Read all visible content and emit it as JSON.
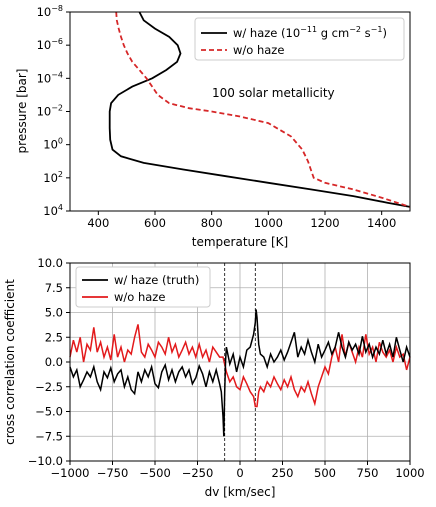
{
  "chart_data": [
    {
      "type": "line",
      "xlabel": "temperature [K]",
      "ylabel": "pressure [bar]",
      "xlim": [
        300,
        1500
      ],
      "ylim_log10": [
        4,
        -8
      ],
      "y_scale": "log",
      "y_inverted": true,
      "grid": false,
      "legend_position": "top-right",
      "x_ticks": [
        "400",
        "600",
        "800",
        "1000",
        "1200",
        "1400"
      ],
      "x_tick_values": [
        400,
        600,
        800,
        1000,
        1200,
        1400
      ],
      "y_ticks": [
        {
          "base": "10",
          "exp": "−8",
          "value": "1e-8"
        },
        {
          "base": "10",
          "exp": "−6",
          "value": "1e-6"
        },
        {
          "base": "10",
          "exp": "−4",
          "value": "1e-4"
        },
        {
          "base": "10",
          "exp": "−2",
          "value": "1e-2"
        },
        {
          "base": "10",
          "exp": "0",
          "value": "1e0"
        },
        {
          "base": "10",
          "exp": "2",
          "value": "1e2"
        },
        {
          "base": "10",
          "exp": "4",
          "value": "1e4"
        }
      ],
      "annotation": "100 solar metallicity",
      "legend": {
        "haze_prefix": "w/ haze (10",
        "haze_exp1": "−11",
        "haze_mid": " g cm",
        "haze_exp2": "−2",
        "haze_mid2": " s",
        "haze_exp3": "−1",
        "haze_suffix": ")",
        "nohaze": "w/o haze"
      },
      "series": [
        {
          "name": "w/ haze (10^-11 g cm^-2 s^-1)",
          "color": "#000000",
          "style": "solid",
          "temperature_K": [
            545,
            560,
            600,
            650,
            680,
            690,
            678,
            640,
            590,
            520,
            470,
            445,
            440,
            440,
            442,
            450,
            480,
            560,
            700,
            850,
            1000,
            1150,
            1300,
            1420,
            1500
          ],
          "log10_pressure_bar": [
            -8,
            -7.5,
            -7,
            -6.5,
            -6,
            -5.5,
            -5,
            -4.5,
            -4,
            -3.5,
            -3,
            -2.5,
            -2,
            -1,
            -0.3,
            0.3,
            0.7,
            1.1,
            1.5,
            1.9,
            2.3,
            2.7,
            3.1,
            3.5,
            3.75
          ]
        },
        {
          "name": "w/o haze",
          "color": "#d62728",
          "style": "dashed",
          "temperature_K": [
            463,
            465,
            472,
            480,
            490,
            503,
            520,
            545,
            570,
            590,
            610,
            650,
            720,
            800,
            900,
            1000,
            1080,
            1120,
            1140,
            1150,
            1160,
            1200,
            1300,
            1400,
            1500
          ],
          "log10_pressure_bar": [
            -8,
            -7.5,
            -7,
            -6.5,
            -6,
            -5.5,
            -5,
            -4.5,
            -4,
            -3.5,
            -3,
            -2.5,
            -2.2,
            -2.0,
            -1.7,
            -1.3,
            -0.5,
            0.3,
            1.0,
            1.5,
            2.0,
            2.3,
            2.7,
            3.2,
            3.75
          ]
        }
      ]
    },
    {
      "type": "line",
      "xlabel": "dv [km/sec]",
      "ylabel": "cross correlation coefficient",
      "xlim": [
        -1000,
        1000
      ],
      "ylim": [
        -10,
        10
      ],
      "grid": true,
      "legend_position": "top-left",
      "x_ticks": [
        "−1000",
        "−750",
        "−500",
        "−250",
        "0",
        "250",
        "500",
        "750",
        "1000"
      ],
      "x_tick_values": [
        -1000,
        -750,
        -500,
        -250,
        0,
        250,
        500,
        750,
        1000
      ],
      "y_ticks": [
        "10.0",
        "7.5",
        "5.0",
        "2.5",
        "0.0",
        "−2.5",
        "−5.0",
        "−7.5",
        "−10.0"
      ],
      "y_tick_values": [
        10,
        7.5,
        5,
        2.5,
        0,
        -2.5,
        -5,
        -7.5,
        -10
      ],
      "vlines": [
        -90,
        90
      ],
      "series": [
        {
          "name": "w/ haze (truth)",
          "color": "#000000",
          "dv_km_s": [
            -1000,
            -980,
            -960,
            -940,
            -920,
            -900,
            -880,
            -860,
            -840,
            -820,
            -800,
            -780,
            -760,
            -740,
            -720,
            -700,
            -680,
            -660,
            -640,
            -620,
            -600,
            -580,
            -560,
            -540,
            -520,
            -500,
            -480,
            -460,
            -440,
            -420,
            -400,
            -380,
            -360,
            -340,
            -320,
            -300,
            -280,
            -260,
            -240,
            -220,
            -200,
            -180,
            -160,
            -140,
            -120,
            -110,
            -100,
            -95,
            -90,
            -85,
            -80,
            -60,
            -40,
            -20,
            0,
            20,
            40,
            60,
            80,
            90,
            95,
            100,
            110,
            120,
            140,
            160,
            180,
            200,
            220,
            240,
            260,
            280,
            300,
            320,
            340,
            360,
            380,
            400,
            420,
            440,
            460,
            480,
            500,
            520,
            540,
            560,
            580,
            600,
            620,
            640,
            660,
            680,
            700,
            720,
            740,
            760,
            780,
            800,
            820,
            840,
            860,
            880,
            900,
            920,
            940,
            960,
            980,
            1000
          ],
          "values": [
            -0.5,
            -1.5,
            -0.8,
            -2.5,
            -1.8,
            -1.0,
            -1.5,
            -0.5,
            -2.0,
            -2.8,
            -1.0,
            -1.6,
            -0.6,
            -2.0,
            -1.2,
            -0.8,
            -2.5,
            -1.5,
            -2.8,
            -3.2,
            -1.0,
            -2.0,
            -0.8,
            -1.5,
            -0.5,
            -2.2,
            -2.6,
            -1.0,
            -0.3,
            -1.8,
            -0.8,
            -2.0,
            -1.0,
            -0.5,
            -1.5,
            -0.8,
            -2.2,
            -1.6,
            -0.4,
            -1.2,
            -2.5,
            -1.0,
            -2.0,
            -0.8,
            -2.2,
            -3.0,
            -5.5,
            -7.5,
            -3.0,
            0.2,
            1.5,
            -0.2,
            0.8,
            -1.0,
            0.5,
            -0.5,
            1.2,
            1.5,
            2.8,
            4.0,
            5.3,
            4.5,
            1.8,
            0.8,
            0.5,
            -0.5,
            0.8,
            0.0,
            0.5,
            1.2,
            0.2,
            1.0,
            2.0,
            3.0,
            0.5,
            1.5,
            0.8,
            2.2,
            1.0,
            0.0,
            1.8,
            0.5,
            1.2,
            2.0,
            0.8,
            1.5,
            3.0,
            1.5,
            0.5,
            2.0,
            1.2,
            1.8,
            0.8,
            2.6,
            1.0,
            1.8,
            0.5,
            1.5,
            0.8,
            2.2,
            0.8,
            1.8,
            0.5,
            2.5,
            1.2,
            0.0,
            1.5,
            0.5
          ]
        },
        {
          "name": "w/o haze",
          "color": "#e31a1c",
          "dv_km_s": [
            -1000,
            -980,
            -960,
            -940,
            -920,
            -900,
            -880,
            -860,
            -840,
            -820,
            -800,
            -780,
            -760,
            -740,
            -720,
            -700,
            -680,
            -660,
            -640,
            -620,
            -600,
            -580,
            -560,
            -540,
            -520,
            -500,
            -480,
            -460,
            -440,
            -420,
            -400,
            -380,
            -360,
            -340,
            -320,
            -300,
            -280,
            -260,
            -240,
            -220,
            -200,
            -180,
            -160,
            -140,
            -120,
            -100,
            -80,
            -60,
            -40,
            -20,
            0,
            20,
            40,
            60,
            80,
            90,
            100,
            110,
            120,
            140,
            160,
            180,
            200,
            220,
            240,
            260,
            280,
            300,
            320,
            340,
            360,
            380,
            400,
            420,
            440,
            460,
            480,
            500,
            520,
            540,
            560,
            580,
            600,
            620,
            640,
            660,
            680,
            700,
            720,
            740,
            760,
            780,
            800,
            820,
            840,
            860,
            880,
            900,
            920,
            940,
            960,
            980,
            1000
          ],
          "values": [
            0.5,
            2.2,
            1.0,
            2.5,
            0.0,
            1.8,
            1.2,
            3.5,
            1.0,
            2.0,
            0.5,
            1.5,
            0.2,
            2.8,
            0.5,
            1.5,
            0.0,
            1.2,
            0.8,
            2.5,
            3.8,
            1.0,
            0.5,
            1.8,
            1.2,
            0.5,
            2.0,
            1.5,
            0.8,
            2.5,
            1.0,
            1.8,
            0.5,
            1.2,
            2.0,
            0.8,
            1.5,
            0.5,
            1.8,
            0.5,
            1.2,
            0.0,
            1.5,
            1.0,
            0.5,
            0.5,
            -1.0,
            -2.0,
            -1.5,
            -2.5,
            -2.8,
            -1.5,
            -2.2,
            -3.0,
            -3.5,
            -4.5,
            -4.5,
            -3.0,
            -2.5,
            -3.0,
            -2.0,
            -2.5,
            -1.5,
            -2.2,
            -2.8,
            -1.8,
            -2.5,
            -1.5,
            -2.8,
            -3.5,
            -2.5,
            -3.0,
            -2.0,
            -3.2,
            -4.2,
            -2.5,
            -1.5,
            -0.5,
            -1.2,
            0.5,
            1.5,
            0.0,
            2.8,
            0.5,
            2.0,
            1.0,
            0.0,
            1.5,
            0.5,
            2.8,
            0.8,
            1.5,
            0.0,
            2.0,
            1.0,
            0.5,
            1.2,
            0.0,
            1.5,
            0.5,
            0.8,
            -0.8,
            0.5
          ]
        }
      ]
    }
  ]
}
